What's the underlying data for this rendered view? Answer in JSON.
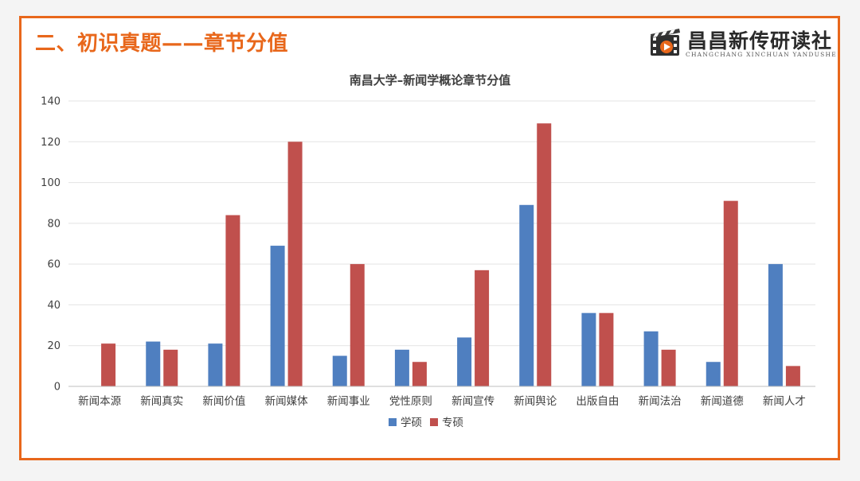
{
  "slide": {
    "title": "二、初识真题——章节分值",
    "logo_name": "昌昌新传研读社",
    "logo_sub": "CHANGCHANG XINCHUAN YANDUSHE"
  },
  "colors": {
    "accent": "#e8671b",
    "series_1": "#4f7fc0",
    "series_2": "#c0504d",
    "grid": "#e3e3e3"
  },
  "icons": [
    "film-clapper-play-icon"
  ],
  "chart_data": {
    "type": "bar",
    "title": "南昌大学–新闻学概论章节分值",
    "xlabel": "",
    "ylabel": "",
    "ylim": [
      0,
      140
    ],
    "yticks": [
      0,
      20,
      40,
      60,
      80,
      100,
      120,
      140
    ],
    "grid": true,
    "legend": "bottom-center",
    "categories": [
      "新闻本源",
      "新闻真实",
      "新闻价值",
      "新闻媒体",
      "新闻事业",
      "党性原则",
      "新闻宣传",
      "新闻舆论",
      "出版自由",
      "新闻法治",
      "新闻道德",
      "新闻人才"
    ],
    "series": [
      {
        "name": "学硕",
        "values": [
          0,
          22,
          21,
          69,
          15,
          18,
          24,
          89,
          36,
          27,
          12,
          60
        ]
      },
      {
        "name": "专硕",
        "values": [
          21,
          18,
          84,
          120,
          60,
          12,
          57,
          129,
          36,
          18,
          91,
          10
        ]
      }
    ]
  }
}
